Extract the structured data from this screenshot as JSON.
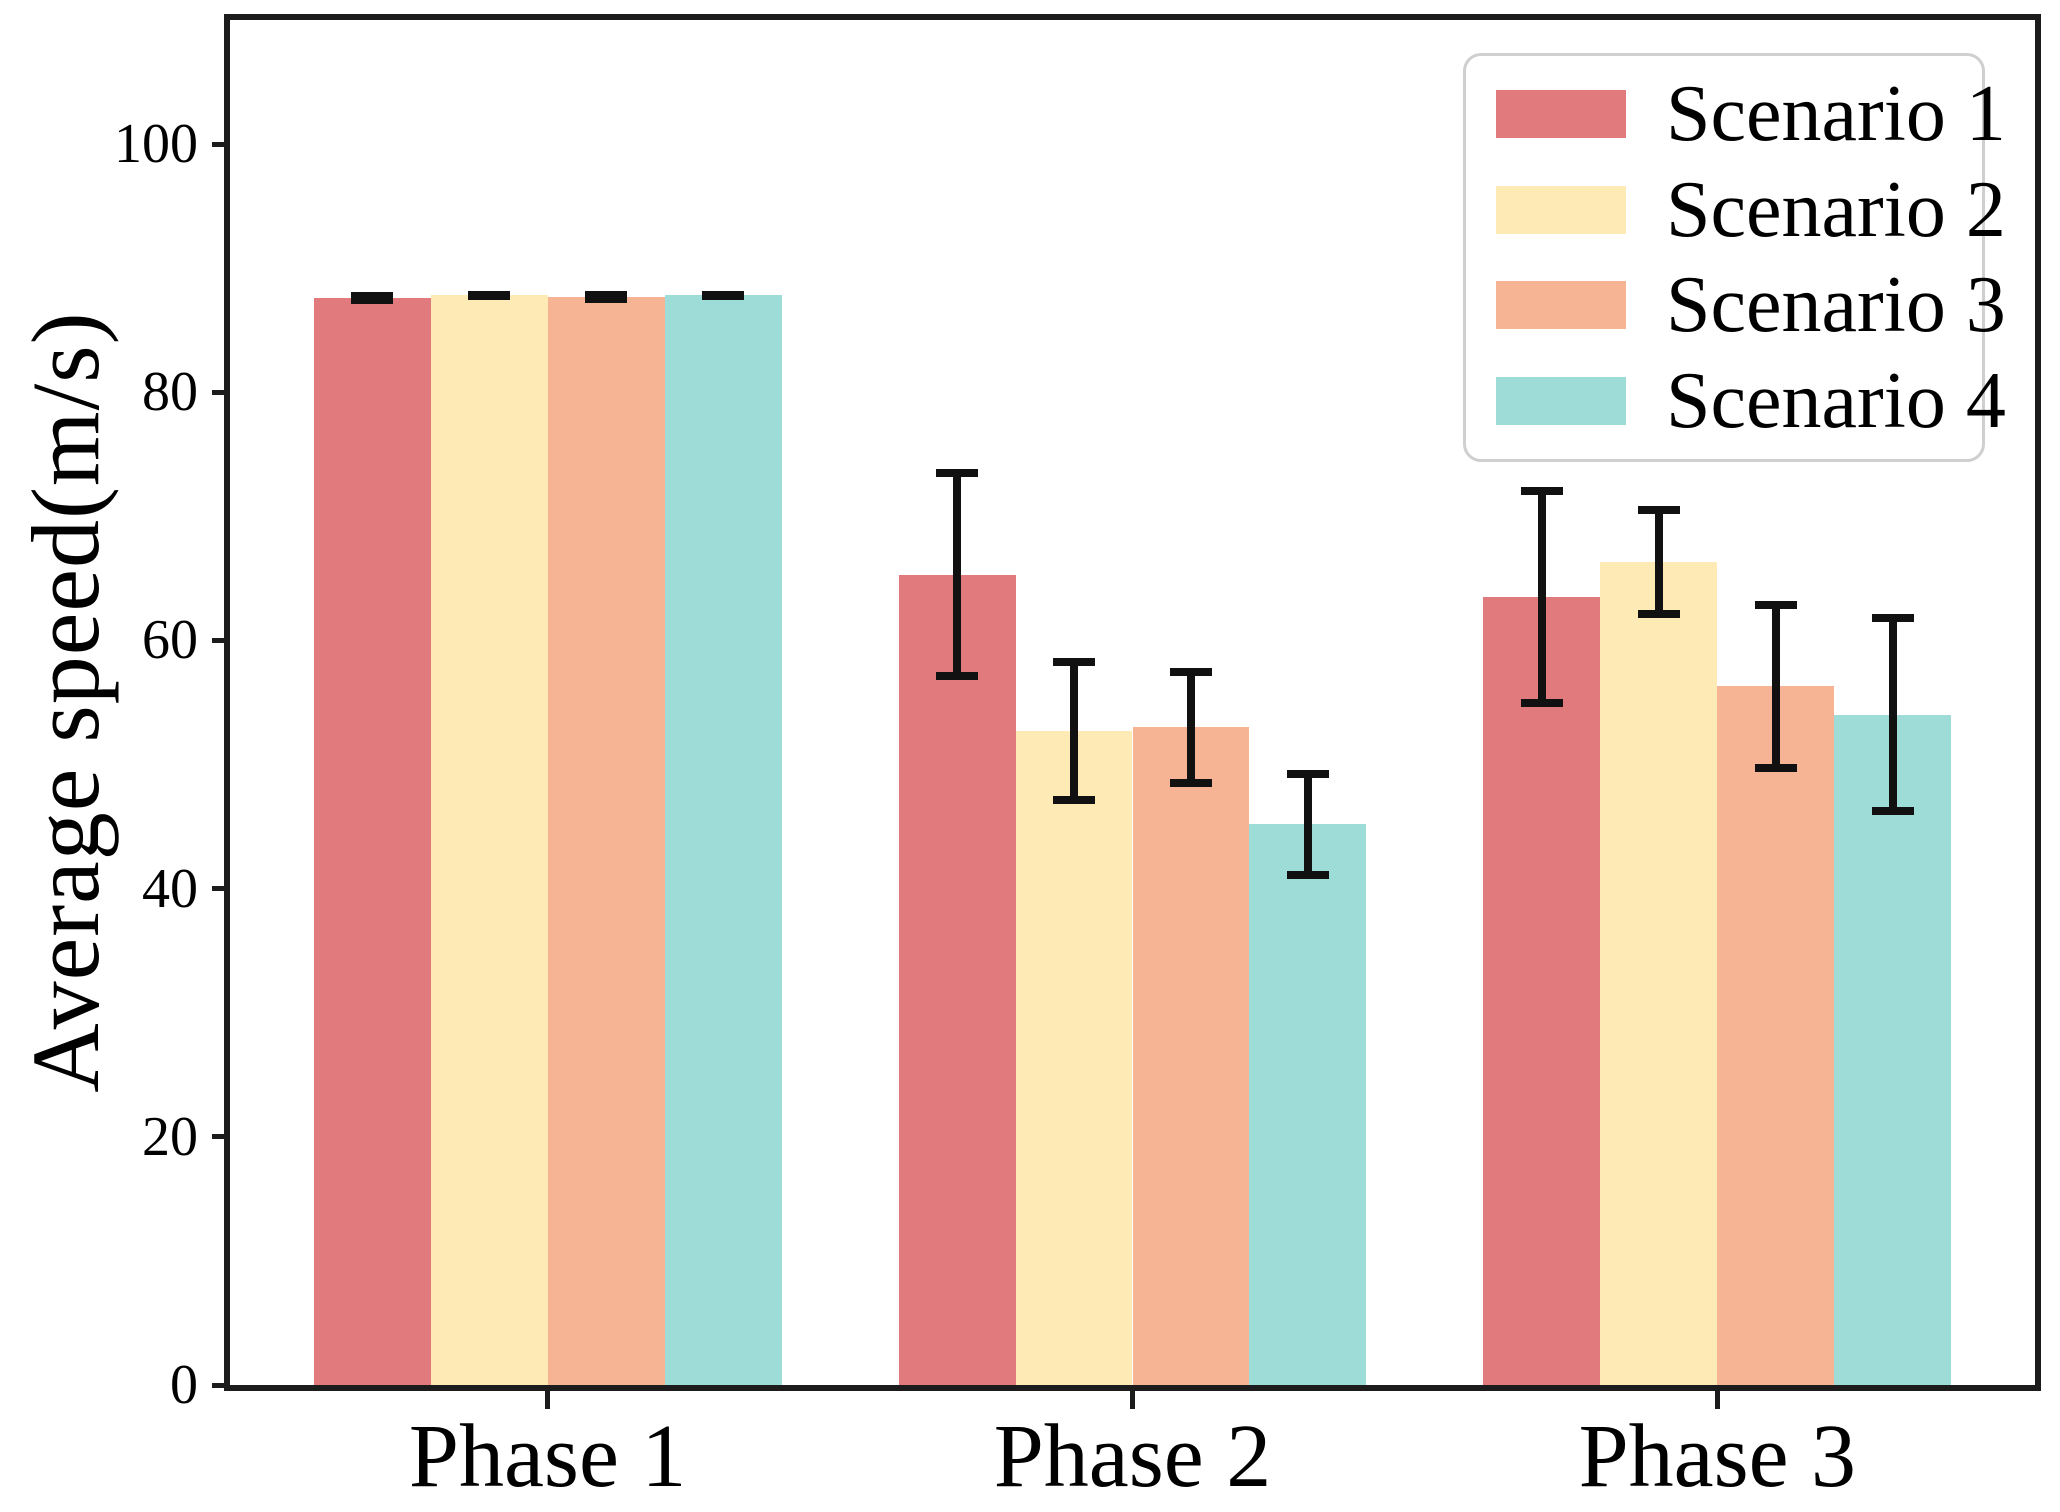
{
  "chart_data": {
    "type": "bar",
    "title": "",
    "xlabel": "",
    "ylabel": "Average speed(m/s)",
    "categories": [
      "Phase 1",
      "Phase 2",
      "Phase 3"
    ],
    "series": [
      {
        "name": "Scenario 1",
        "color": "#e07a7d",
        "values": [
          87.6,
          65.3,
          63.5
        ],
        "errors": [
          0.5,
          8.5,
          8.9
        ]
      },
      {
        "name": "Scenario 2",
        "color": "#fdeab5",
        "values": [
          87.8,
          52.7,
          66.3
        ],
        "errors": [
          0.4,
          5.9,
          4.5
        ]
      },
      {
        "name": "Scenario 3",
        "color": "#f7b494",
        "values": [
          87.7,
          53.0,
          56.3
        ],
        "errors": [
          0.5,
          4.8,
          6.9
        ]
      },
      {
        "name": "Scenario 4",
        "color": "#9edcd8",
        "values": [
          87.8,
          45.2,
          54.0
        ],
        "errors": [
          0.4,
          4.4,
          8.1
        ]
      }
    ],
    "ylim": [
      0,
      110
    ],
    "yticks": [
      0,
      20,
      40,
      60,
      80,
      100
    ],
    "legend_position": "upper right",
    "grid": false,
    "error_bar_color": "#111111",
    "spine_color": "#1c1c1c"
  }
}
